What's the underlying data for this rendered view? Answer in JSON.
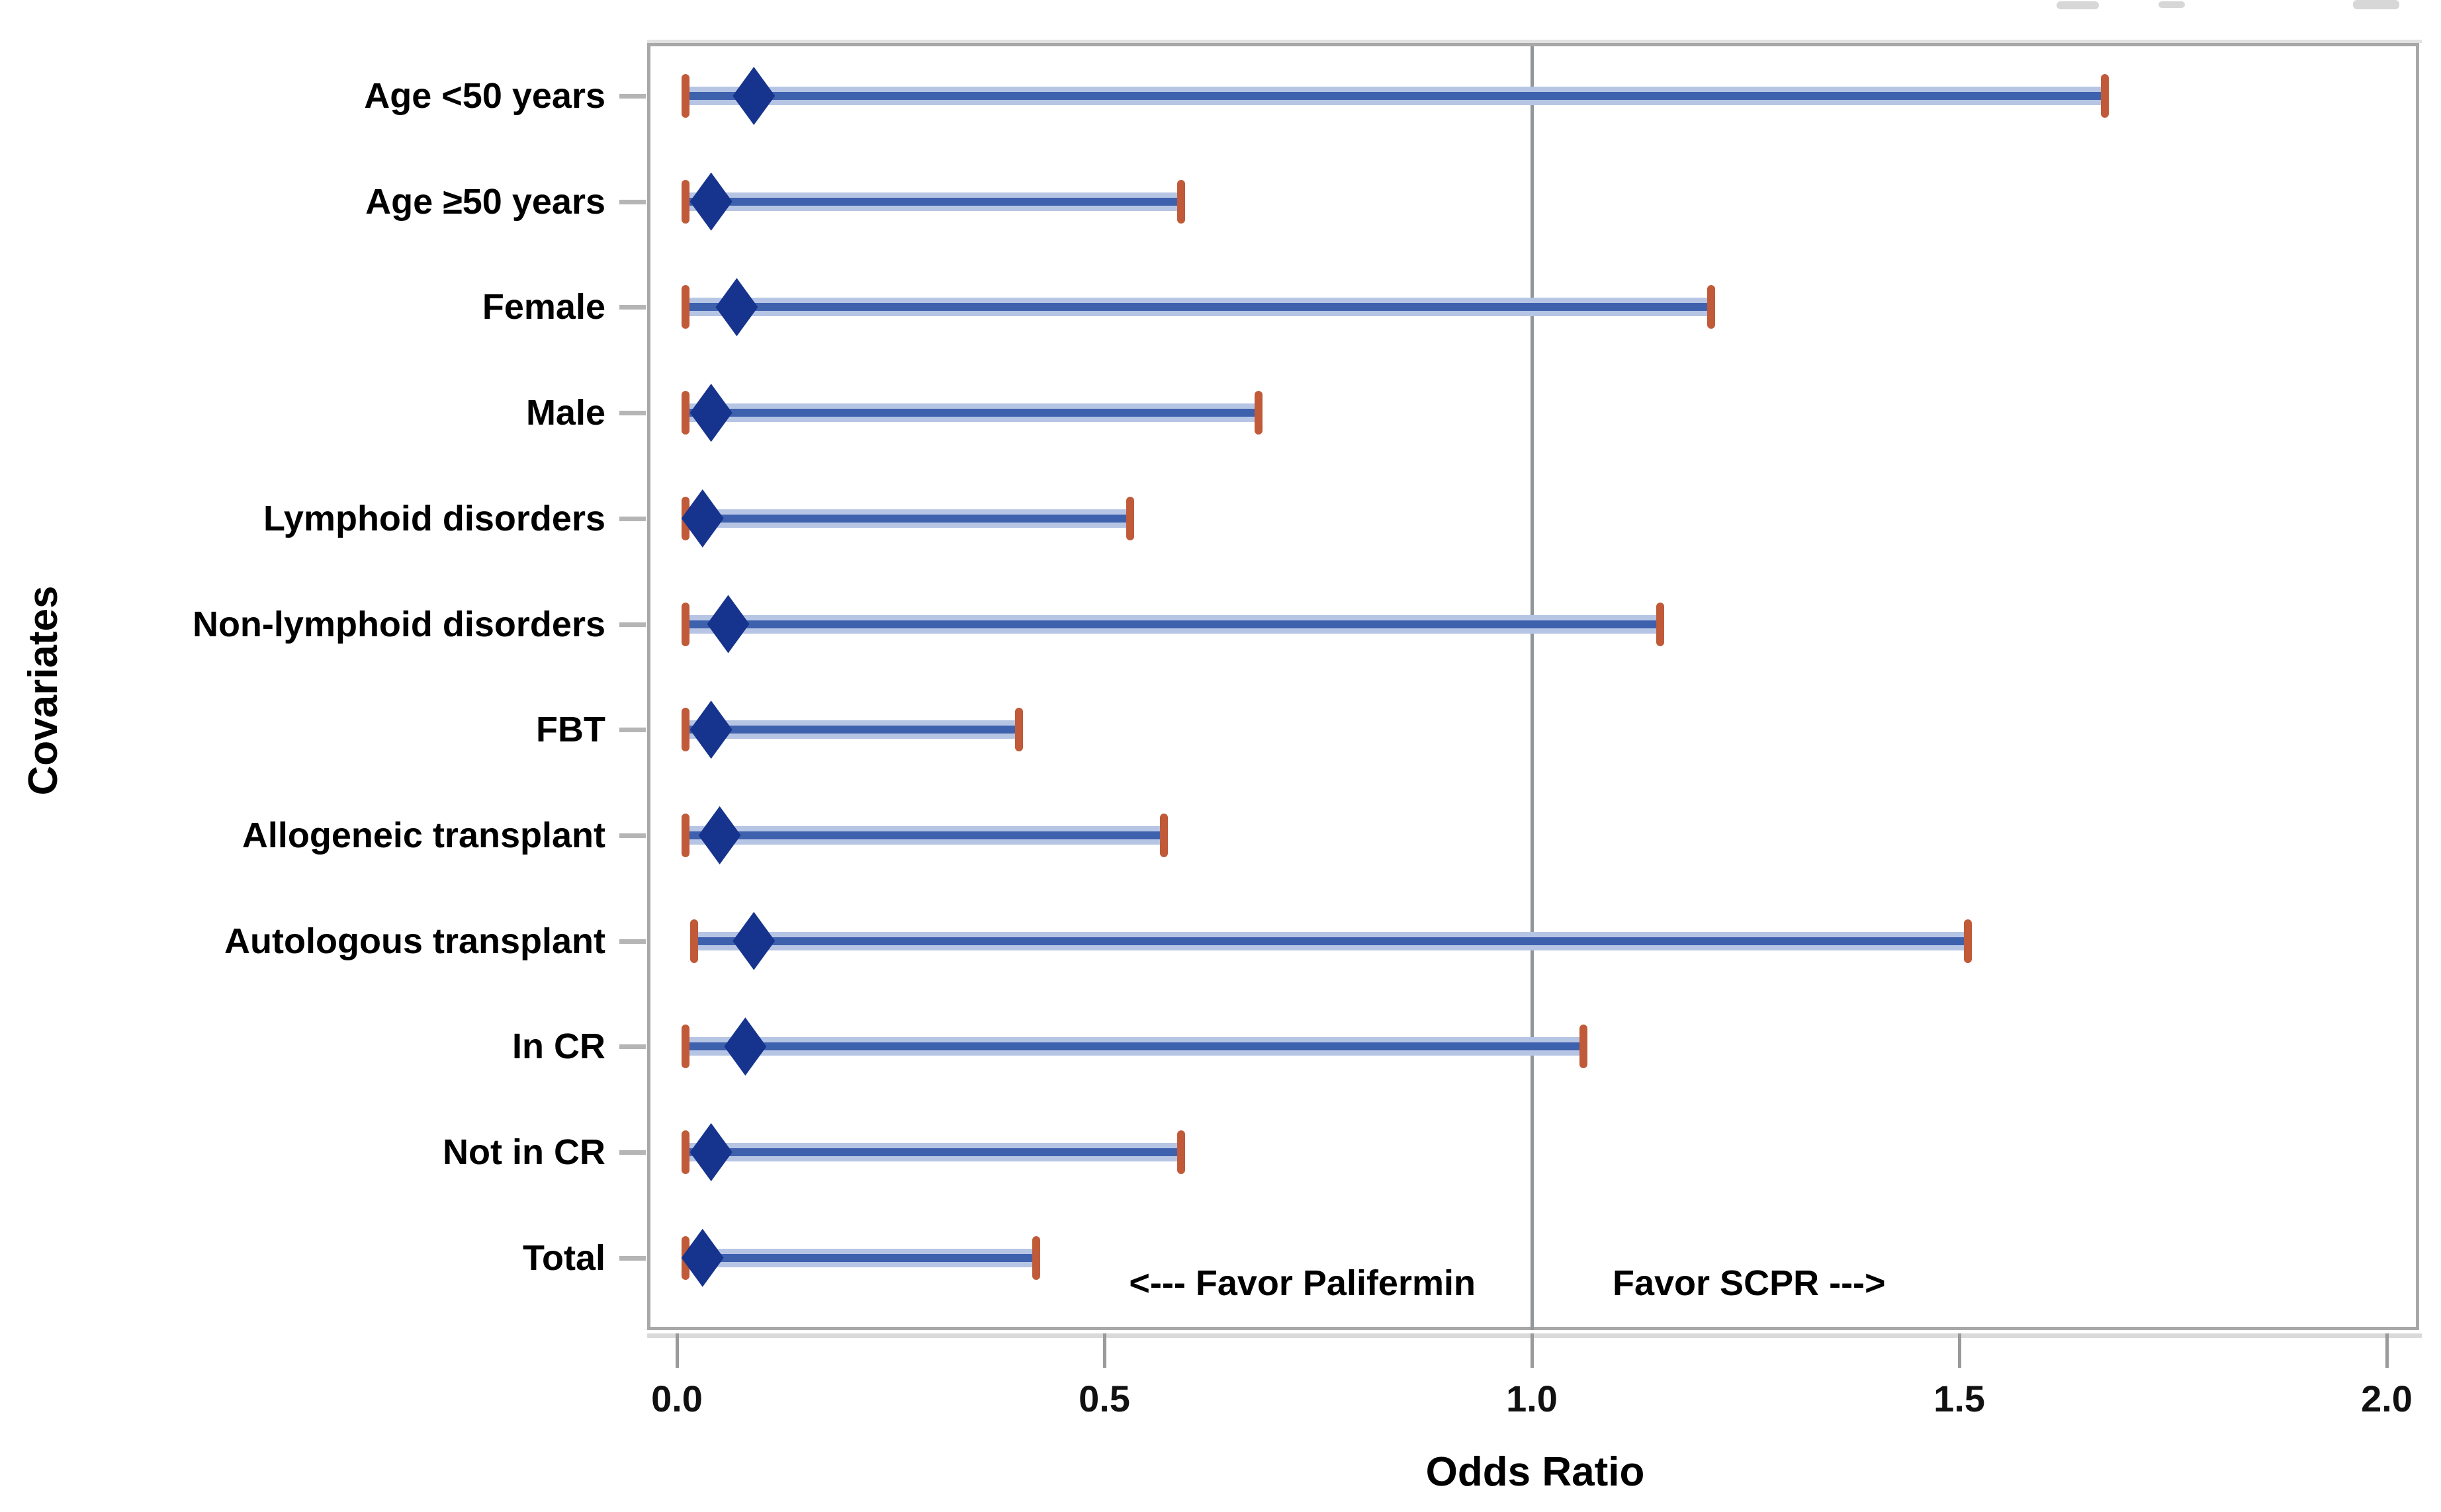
{
  "figure": {
    "kind": "forest plot of odds ratios with 95% confidence intervals",
    "background": "#ffffff"
  },
  "colors": {
    "diamond": "#16338d",
    "ci_core": "#3e61ae",
    "ci_halo": "#b7c5e5",
    "ci_cap": "#c05a38",
    "frame": "#a8a8a8",
    "reference_line": "#8f979b",
    "tick": "#9a9a9a",
    "text": "#000000"
  },
  "chart_data": {
    "type": "scatter",
    "subtype": "forest-plot",
    "marker": "diamond",
    "title": "",
    "xlabel": "Odds Ratio",
    "ylabel": "Covariates",
    "xlim": [
      0.0,
      2.0
    ],
    "xticks": [
      0.0,
      0.5,
      1.0,
      1.5,
      2.0
    ],
    "xtick_labels": [
      "0.0",
      "0.5",
      "1.0",
      "1.5",
      "2.0"
    ],
    "reference_line_x": 1.0,
    "grid": false,
    "legend": null,
    "rows": [
      {
        "label": "Age <50 years",
        "or": 0.09,
        "low": 0.01,
        "high": 1.67
      },
      {
        "label": "Age ≥50 years",
        "or": 0.04,
        "low": 0.01,
        "high": 0.59
      },
      {
        "label": "Female",
        "or": 0.07,
        "low": 0.01,
        "high": 1.21
      },
      {
        "label": "Male",
        "or": 0.04,
        "low": 0.01,
        "high": 0.68
      },
      {
        "label": "Lymphoid disorders",
        "or": 0.03,
        "low": 0.01,
        "high": 0.53
      },
      {
        "label": "Non-lymphoid disorders",
        "or": 0.06,
        "low": 0.01,
        "high": 1.15
      },
      {
        "label": "FBT",
        "or": 0.04,
        "low": 0.01,
        "high": 0.4
      },
      {
        "label": "Allogeneic transplant",
        "or": 0.05,
        "low": 0.01,
        "high": 0.57
      },
      {
        "label": "Autologous transplant",
        "or": 0.09,
        "low": 0.02,
        "high": 1.51
      },
      {
        "label": "In CR",
        "or": 0.08,
        "low": 0.01,
        "high": 1.06
      },
      {
        "label": "Not in CR",
        "or": 0.04,
        "low": 0.01,
        "high": 0.59
      },
      {
        "label": "Total",
        "or": 0.03,
        "low": 0.01,
        "high": 0.42
      }
    ],
    "annotations": {
      "favor_left": "<--- Favor Palifermin",
      "favor_right": "Favor SCPR --->"
    }
  }
}
